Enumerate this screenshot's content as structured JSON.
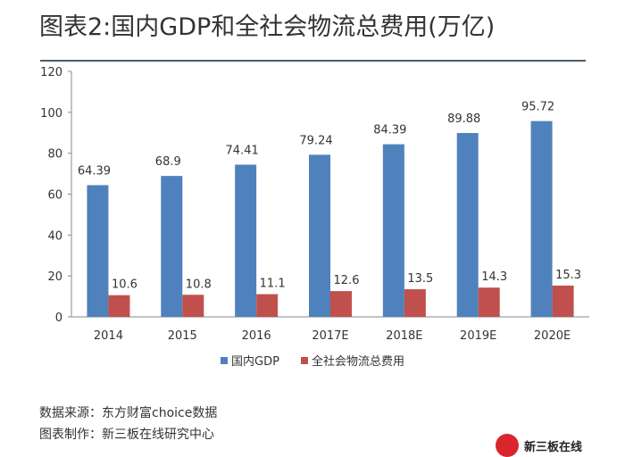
{
  "chart_data": {
    "type": "bar",
    "title": "图表2:国内GDP和全社会物流总费用(万亿)",
    "categories": [
      "2014",
      "2015",
      "2016",
      "2017E",
      "2018E",
      "2019E",
      "2020E"
    ],
    "series": [
      {
        "name": "国内GDP",
        "color": "#4f81bd",
        "values": [
          64.39,
          68.9,
          74.41,
          79.24,
          84.39,
          89.88,
          95.72
        ]
      },
      {
        "name": "全社会物流总费用",
        "color": "#c0504d",
        "values": [
          10.6,
          10.8,
          11.1,
          12.6,
          13.5,
          14.3,
          15.3
        ]
      }
    ],
    "ylim": [
      0,
      120
    ],
    "yticks": [
      0,
      20,
      40,
      60,
      80,
      100,
      120
    ],
    "grid": false,
    "legend": "bottom"
  },
  "footer": {
    "source": "数据来源：东方财富choice数据",
    "maker": "图表制作：新三板在线研究中心"
  },
  "logo": {
    "text": "新三板在线"
  }
}
